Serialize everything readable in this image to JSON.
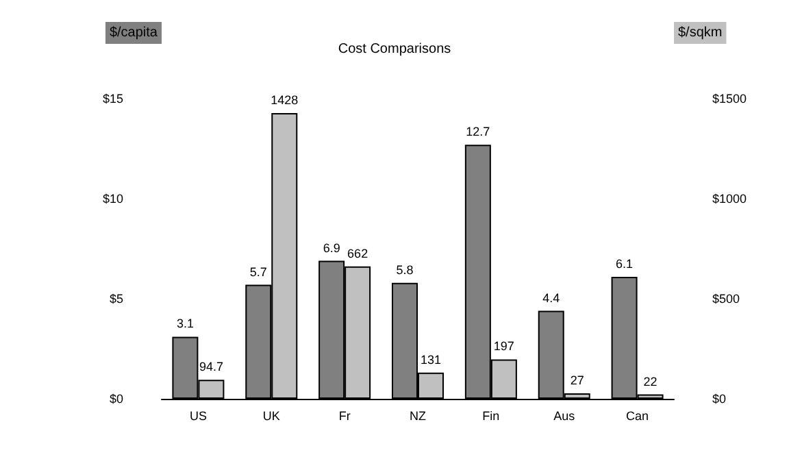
{
  "chart_data": {
    "type": "bar",
    "title": "Cost Comparisons",
    "ylabel": "$/capita",
    "y2label": "$/sqkm",
    "categories": [
      "US",
      "UK",
      "Fr",
      "NZ",
      "Fin",
      "Aus",
      "Can"
    ],
    "series": [
      {
        "color": "#808080",
        "values": [
          3.1,
          5.7,
          6.9,
          5.8,
          12.7,
          4.4,
          6.1
        ]
      },
      {
        "color": "#c0c0c0",
        "axis": "y2",
        "values": [
          94.7,
          1428,
          662,
          131,
          197,
          27,
          22
        ]
      }
    ],
    "ylim": [
      0,
      15
    ],
    "yticks": [
      {
        "value": 0,
        "label": "$0"
      },
      {
        "value": 5,
        "label": "$5"
      },
      {
        "value": 10,
        "label": "$10"
      },
      {
        "value": 15,
        "label": "$15"
      }
    ],
    "y2lim": [
      0,
      1500
    ],
    "y2ticks": [
      {
        "value": 0,
        "label": "$0"
      },
      {
        "value": 500,
        "label": "$500"
      },
      {
        "value": 1000,
        "label": "$1000"
      },
      {
        "value": 1500,
        "label": "$1500"
      }
    ],
    "data_labels": true,
    "grid": false
  }
}
